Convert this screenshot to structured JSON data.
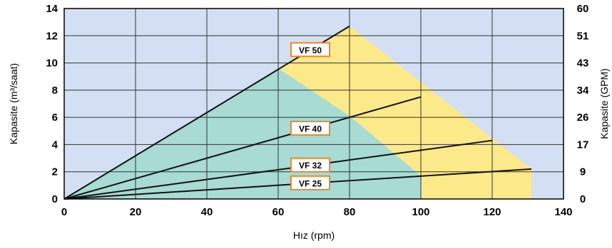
{
  "chart_data": {
    "type": "line",
    "xlabel": "Hız (rpm)",
    "ylabel": "Kapasite (m³/saat)",
    "y2label": "Kapasite (GPM)",
    "xlim": [
      0,
      140
    ],
    "ylim": [
      0,
      14
    ],
    "x_ticks": [
      "0",
      "20",
      "40",
      "60",
      "80",
      "100",
      "120",
      "140"
    ],
    "y_ticks": [
      "0",
      "2",
      "4",
      "6",
      "8",
      "10",
      "12",
      "14"
    ],
    "y2_ticks": [
      "0",
      "9",
      "17",
      "26",
      "34",
      "43",
      "51",
      "60"
    ],
    "grid": true,
    "background_color": "#d3e0f3",
    "series": [
      {
        "name": "VF 50",
        "x": [
          0,
          80
        ],
        "y": [
          0,
          12.7
        ]
      },
      {
        "name": "VF 40",
        "x": [
          0,
          100
        ],
        "y": [
          0,
          7.5
        ]
      },
      {
        "name": "VF 32",
        "x": [
          0,
          120
        ],
        "y": [
          0,
          4.3
        ]
      },
      {
        "name": "VF 25",
        "x": [
          0,
          131
        ],
        "y": [
          0,
          2.2
        ]
      }
    ],
    "regions": [
      {
        "color": "#fce98a",
        "polygon": [
          [
            60,
            9.6
          ],
          [
            80,
            12.7
          ],
          [
            131,
            2.2
          ],
          [
            131,
            0
          ],
          [
            0,
            0
          ]
        ]
      },
      {
        "color": "#a7dbd3",
        "polygon": [
          [
            0,
            0
          ],
          [
            60,
            9.6
          ],
          [
            80,
            6.1
          ],
          [
            100,
            1.7
          ],
          [
            100,
            0
          ]
        ]
      }
    ],
    "label_color": "#e8892c"
  }
}
